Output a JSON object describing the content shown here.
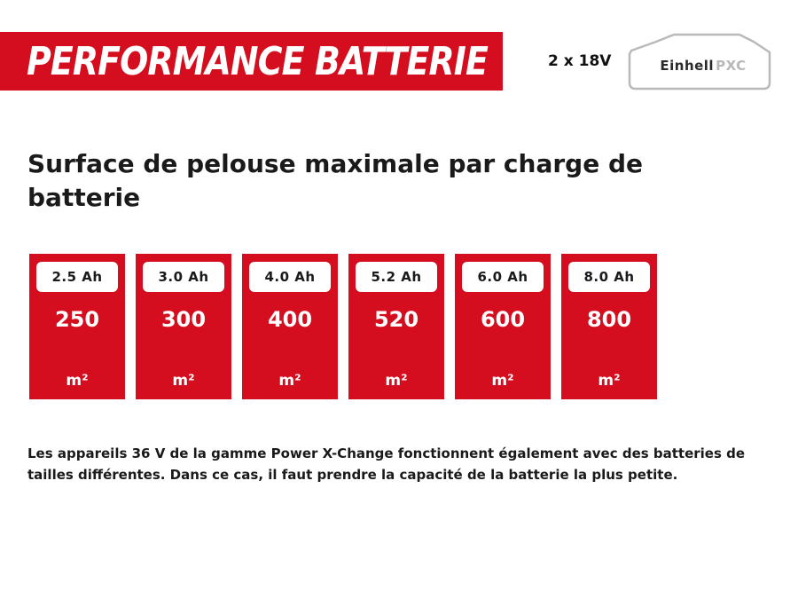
{
  "banner": {
    "title": "PERFORMANCE BATTERIE"
  },
  "battery_system": {
    "voltage": "2 x 18V",
    "logo_brand": "Einhell",
    "logo_system": "PXC"
  },
  "heading": "Surface de pelouse maximale par charge de batterie",
  "cards": [
    {
      "capacity": "2.5 Ah",
      "area": "250",
      "unit": "m²"
    },
    {
      "capacity": "3.0 Ah",
      "area": "300",
      "unit": "m²"
    },
    {
      "capacity": "4.0 Ah",
      "area": "400",
      "unit": "m²"
    },
    {
      "capacity": "5.2 Ah",
      "area": "520",
      "unit": "m²"
    },
    {
      "capacity": "6.0 Ah",
      "area": "600",
      "unit": "m²"
    },
    {
      "capacity": "8.0 Ah",
      "area": "800",
      "unit": "m²"
    }
  ],
  "note": "Les appareils 36 V de la gamme Power X-Change fonctionnent également avec des batteries de tailles différentes. Dans ce cas, il faut prendre la capacité de la batterie la plus petite.",
  "colors": {
    "accent": "#d50e1f",
    "text": "#1a1a1a",
    "logo_grey": "#b8b8b8"
  }
}
